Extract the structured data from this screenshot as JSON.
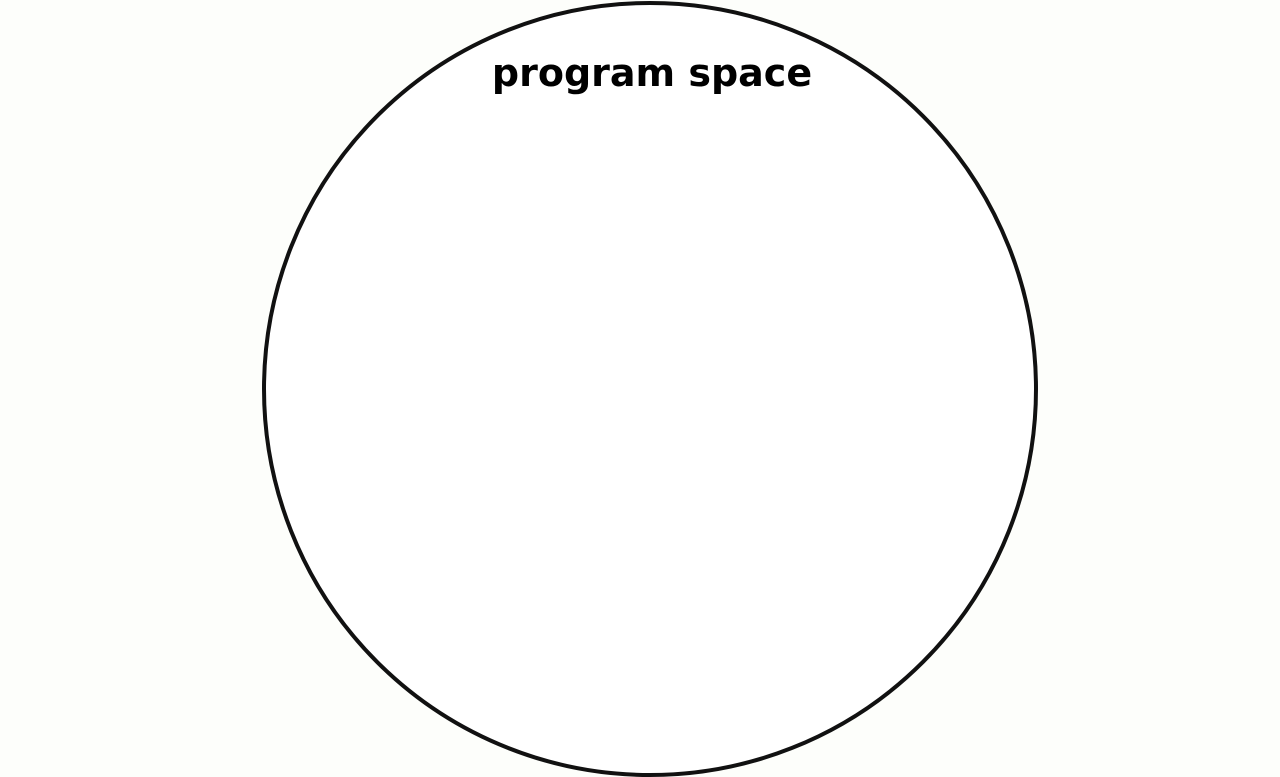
{
  "diagram": {
    "region": {
      "label": "program space",
      "stroke_color": "#111111",
      "fill_color": "#ffffff"
    },
    "label_color": "#000000",
    "background_color": "#fdfefb"
  }
}
